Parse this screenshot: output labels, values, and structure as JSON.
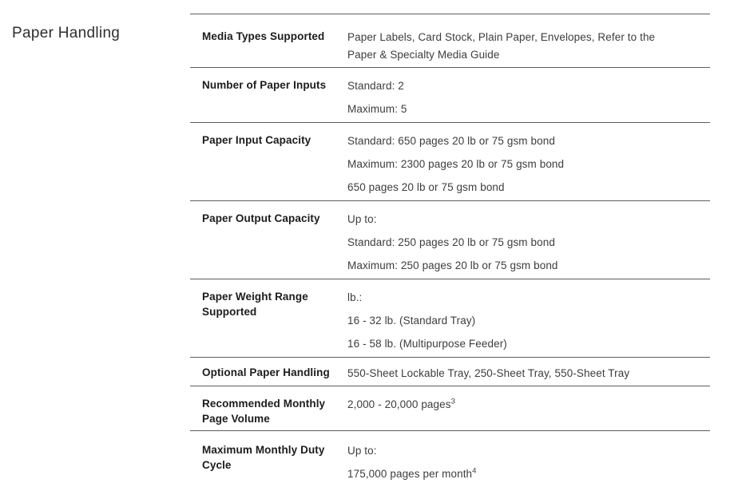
{
  "section": {
    "title": "Paper Handling"
  },
  "table": {
    "rows": [
      {
        "label": "Media Types Supported",
        "values": [
          "Paper Labels, Card Stock, Plain Paper, Envelopes, Refer to the Paper & Specialty Media Guide"
        ]
      },
      {
        "label": "Number of Paper Inputs",
        "values": [
          "Standard: 2",
          "Maximum: 5"
        ]
      },
      {
        "label": "Paper Input Capacity",
        "values": [
          "Standard: 650 pages 20 lb or 75 gsm bond",
          "Maximum: 2300 pages 20 lb or 75 gsm bond",
          "650 pages 20 lb or 75 gsm bond"
        ]
      },
      {
        "label": "Paper Output Capacity",
        "values": [
          "Up to:",
          "Standard: 250 pages 20 lb or 75 gsm bond",
          "Maximum: 250 pages 20 lb or 75 gsm bond"
        ]
      },
      {
        "label": "Paper Weight Range Supported",
        "values": [
          "lb.:",
          "16 - 32 lb. (Standard Tray)",
          "16 - 58 lb. (Multipurpose Feeder)"
        ]
      },
      {
        "label": "Optional Paper Handling",
        "values": [
          "550-Sheet Lockable Tray, 250-Sheet Tray, 550-Sheet Tray"
        ]
      },
      {
        "label": "Recommended Monthly Page Volume",
        "values": [
          {
            "text": "2,000 - 20,000 pages",
            "sup": "3"
          }
        ]
      },
      {
        "label": "Maximum Monthly Duty Cycle",
        "values": [
          "Up to:",
          {
            "text": "175,000 pages per month",
            "sup": "4"
          }
        ]
      }
    ]
  },
  "colors": {
    "background": "#ffffff",
    "heading_text": "#2e2e2e",
    "label_text": "#1c1c1c",
    "value_text": "#3d3d3d",
    "divider": "#5d5d5d"
  }
}
